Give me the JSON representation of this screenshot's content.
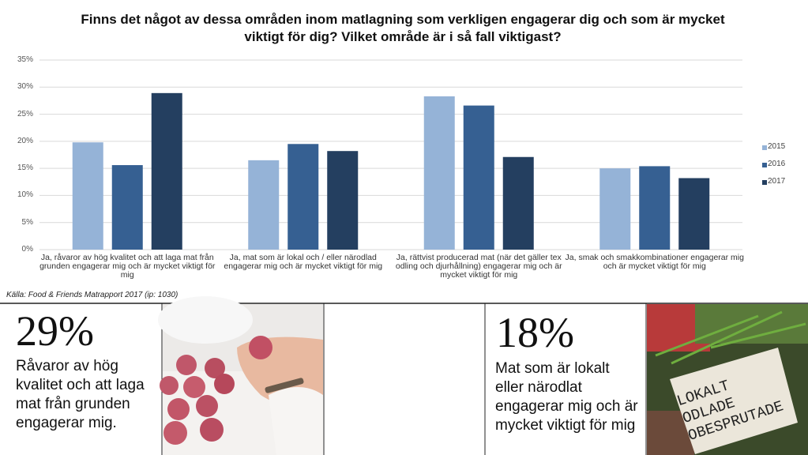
{
  "chart_data": {
    "type": "bar",
    "title": "Finns det något av dessa områden inom matlagning som verkligen engagerar dig och som är mycket  viktigt för dig? Vilket område är i så fall viktigast?",
    "categories": [
      "Ja, råvaror av hög kvalitet och att laga mat från grunden engagerar mig och är mycket viktigt för mig",
      "Ja, mat som är lokal och / eller närodlad engagerar mig och är mycket viktigt för mig",
      "Ja, rättvist producerad mat (när det gäller tex odling och djurhållning) engagerar mig och är mycket viktigt för mig",
      "Ja, smak och smakkombinationer engagerar mig och är mycket viktigt för mig"
    ],
    "series": [
      {
        "name": "2015",
        "color": "#95b3d7",
        "values": [
          19.8,
          16.5,
          28.3,
          15.0
        ]
      },
      {
        "name": "2016",
        "color": "#366092",
        "values": [
          15.6,
          19.5,
          26.6,
          15.4
        ]
      },
      {
        "name": "2017",
        "color": "#243f60",
        "values": [
          28.9,
          18.2,
          17.1,
          13.2
        ]
      }
    ],
    "ylim": [
      0,
      35
    ],
    "yticks": [
      {
        "value": 0,
        "label": "0%"
      },
      {
        "value": 5,
        "label": "5%"
      },
      {
        "value": 10,
        "label": "10%"
      },
      {
        "value": 15,
        "label": "15%"
      },
      {
        "value": 20,
        "label": "20%"
      },
      {
        "value": 25,
        "label": "25%"
      },
      {
        "value": 30,
        "label": "30%"
      },
      {
        "value": 35,
        "label": "35%"
      }
    ],
    "grid": true,
    "legend": "right",
    "source": "Källa: Food & Friends Matrapport 2017  (ip: 1030)"
  },
  "panels": [
    {
      "figure": "29%",
      "text": "Råvaror av hög kvalitet och att laga mat från grunden engagerar mig."
    },
    {
      "figure": "18%",
      "text": "Mat som är lokalt eller närodlat engagerar mig och är mycket viktigt för mig"
    }
  ],
  "photo_sign": "LOKALT ODLADE OBESPRUTADE"
}
